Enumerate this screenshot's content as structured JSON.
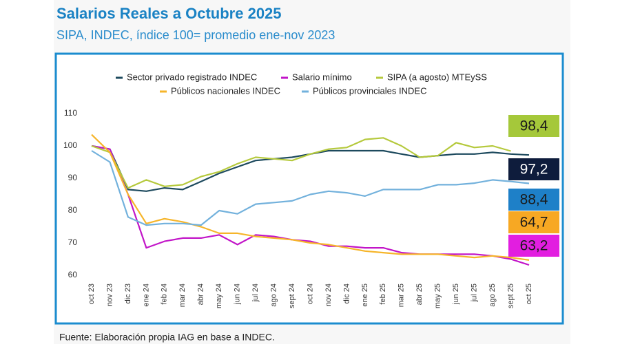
{
  "chart_data": {
    "type": "line",
    "title": "Salarios Reales a Octubre 2025",
    "subtitle": "SIPA, INDEC, índice 100= promedio ene-nov 2023",
    "source": "Fuente: Elaboración propia IAG en base a INDEC.",
    "categories": [
      "oct 23",
      "nov 23",
      "dic 23",
      "ene 24",
      "feb 24",
      "mar 24",
      "abr 24",
      "may 24",
      "jun 24",
      "jul 24",
      "ago 24",
      "sept 24",
      "oct 24",
      "nov 24",
      "dic 24",
      "ene 25",
      "feb 25",
      "mar 25",
      "abr 25",
      "may 25",
      "jun 25",
      "jul 25",
      "ago 25",
      "sept 25",
      "oct 25"
    ],
    "ylim": [
      60,
      110
    ],
    "yticks": [
      60,
      70,
      80,
      90,
      100,
      110
    ],
    "grid": false,
    "series": [
      {
        "name": "Sector privado registrado INDEC",
        "color": "#1d4a5e",
        "label_box_color": "#0e1c3c",
        "label_text_color": "#ffffff",
        "values": [
          100,
          99,
          86.5,
          86,
          87,
          86.5,
          89,
          91.5,
          93.5,
          95.5,
          96,
          96.5,
          97.5,
          98.5,
          98.5,
          98.5,
          98.5,
          97.5,
          96.5,
          97,
          97.5,
          97.5,
          98,
          97.5,
          97.2
        ],
        "value_labels": [
          null,
          null,
          null,
          null,
          null,
          null,
          null,
          null,
          null,
          null,
          null,
          null,
          null,
          null,
          null,
          null,
          null,
          null,
          null,
          null,
          null,
          null,
          null,
          null,
          "97,2"
        ]
      },
      {
        "name": "Salario mínimo",
        "color": "#c215c8",
        "label_box_color": "#e21ee0",
        "label_text_color": "#1a1a1a",
        "values": [
          100,
          99,
          85,
          68.5,
          70.5,
          71.5,
          71.5,
          72.5,
          69.5,
          72.5,
          72,
          71,
          70.5,
          69,
          69,
          68.5,
          68.5,
          67,
          66.5,
          66.5,
          66.5,
          66.5,
          66,
          65,
          63.2
        ],
        "value_labels": [
          null,
          null,
          null,
          null,
          null,
          null,
          null,
          null,
          null,
          null,
          null,
          null,
          null,
          null,
          null,
          null,
          null,
          null,
          null,
          null,
          null,
          null,
          null,
          null,
          "63,2"
        ]
      },
      {
        "name": "SIPA (a agosto) MTEySS",
        "color": "#b5c93c",
        "label_box_color": "#a5c83a",
        "label_text_color": "#1a1a1a",
        "values": [
          100,
          98,
          87,
          89.5,
          87.5,
          88,
          90.5,
          92,
          94.5,
          96.5,
          96,
          95.5,
          97.5,
          99,
          99.5,
          102,
          102.5,
          100,
          96.5,
          97,
          101,
          99.5,
          100,
          98.4,
          null
        ],
        "value_labels": [
          null,
          null,
          null,
          null,
          null,
          null,
          null,
          null,
          null,
          null,
          null,
          null,
          null,
          null,
          null,
          null,
          null,
          null,
          null,
          null,
          null,
          null,
          null,
          "98,4",
          null
        ]
      },
      {
        "name": "Públicos nacionales INDEC",
        "color": "#f6b52a",
        "label_box_color": "#f7a823",
        "label_text_color": "#1a1a1a",
        "values": [
          103.5,
          98,
          85,
          76,
          77.5,
          76.5,
          75,
          73,
          73,
          72,
          71.5,
          71,
          70,
          69.5,
          68.5,
          67.5,
          67,
          66.5,
          66.5,
          66.5,
          66,
          65.5,
          66,
          65.5,
          64.7
        ],
        "value_labels": [
          null,
          null,
          null,
          null,
          null,
          null,
          null,
          null,
          null,
          null,
          null,
          null,
          null,
          null,
          null,
          null,
          null,
          null,
          null,
          null,
          null,
          null,
          null,
          null,
          "64,7"
        ]
      },
      {
        "name": "Públicos provinciales INDEC",
        "color": "#72b1dc",
        "label_box_color": "#1e80c8",
        "label_text_color": "#1a1a1a",
        "values": [
          98.5,
          95,
          78,
          75.5,
          76,
          76,
          75.5,
          80,
          79,
          82,
          82.5,
          83,
          85,
          86,
          85.5,
          84.5,
          86.5,
          86.5,
          86.5,
          88,
          88,
          88.5,
          89.5,
          89,
          88.4
        ],
        "value_labels": [
          null,
          null,
          null,
          null,
          null,
          null,
          null,
          null,
          null,
          null,
          null,
          null,
          null,
          null,
          null,
          null,
          null,
          null,
          null,
          null,
          null,
          null,
          null,
          null,
          "88,4"
        ]
      }
    ]
  }
}
